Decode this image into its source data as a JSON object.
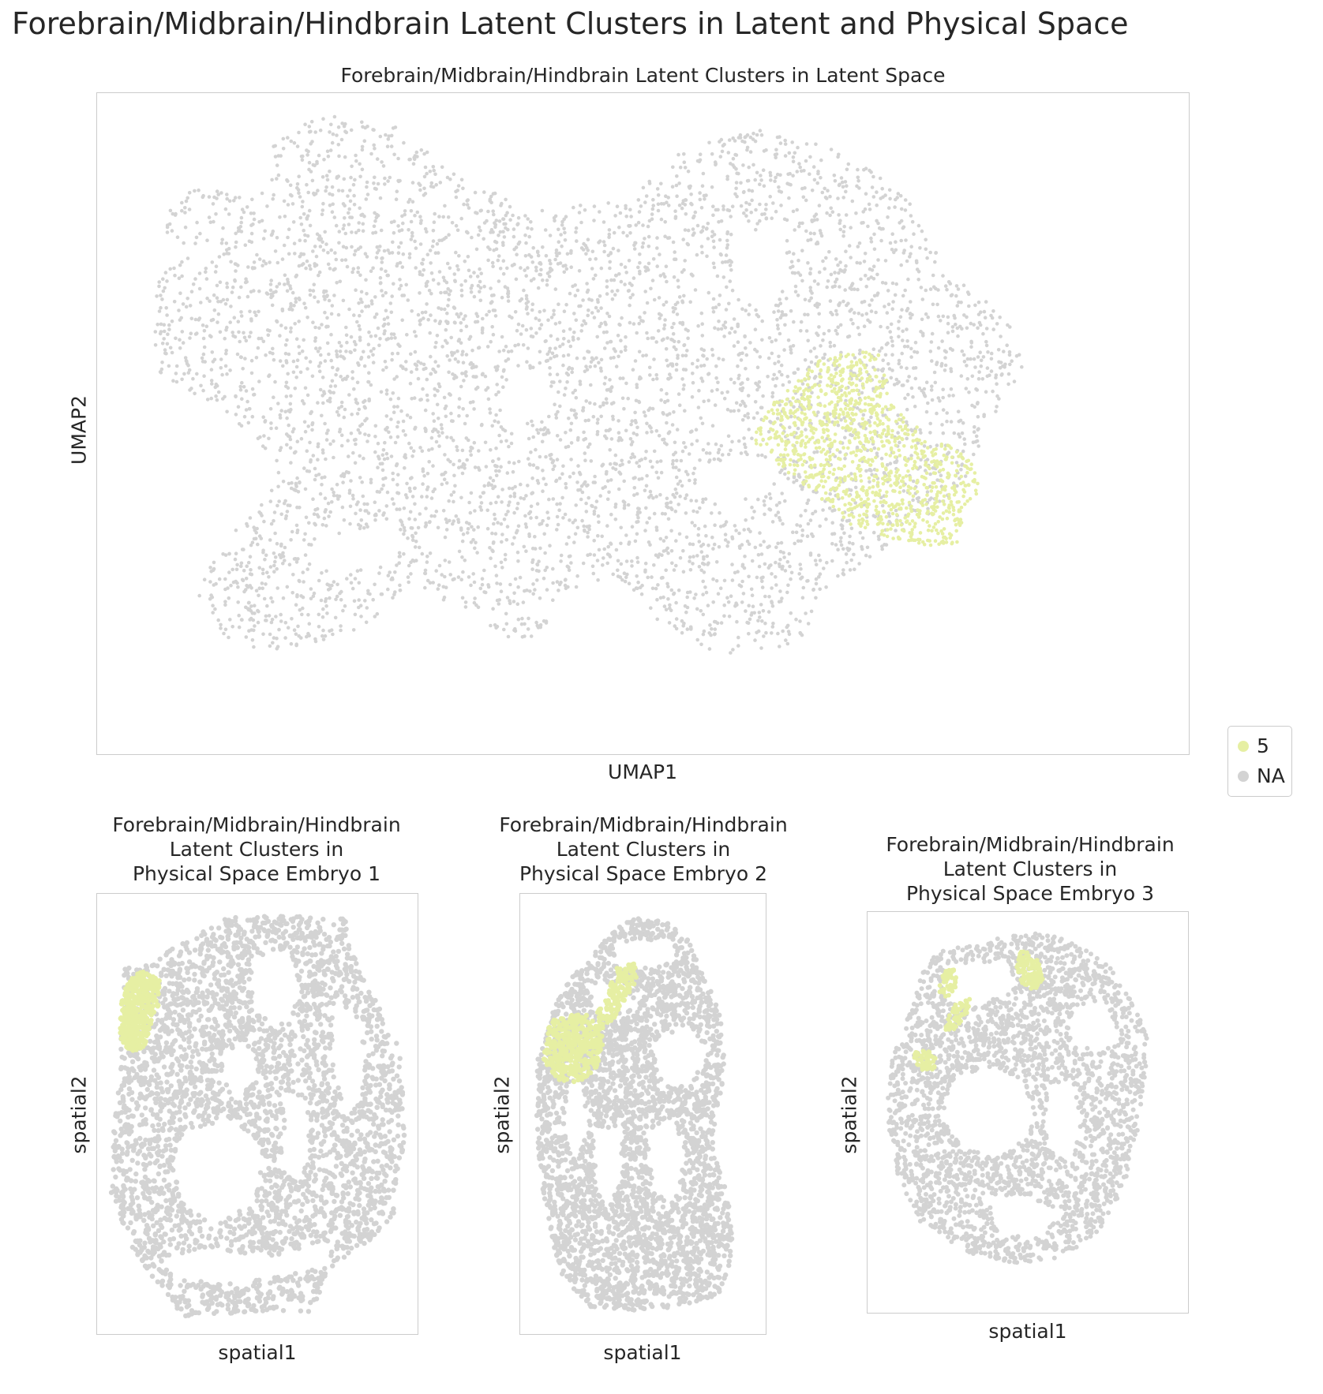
{
  "figure": {
    "suptitle": "Forebrain/Midbrain/Hindbrain Latent Clusters in Latent and Physical Space"
  },
  "colors": {
    "cluster": "#e6efa3",
    "na": "#d3d3d3"
  },
  "legend": {
    "items": [
      {
        "label": "5",
        "color": "#e6efa3"
      },
      {
        "label": "NA",
        "color": "#d3d3d3"
      }
    ]
  },
  "chart_data": [
    {
      "type": "scatter",
      "title": "Forebrain/Midbrain/Hindbrain Latent Clusters in Latent Space",
      "xlabel": "UMAP1",
      "ylabel": "UMAP2",
      "grid": false,
      "ticks": false,
      "series": [
        {
          "name": "NA",
          "color": "#d3d3d3",
          "region": "most of embedding"
        },
        {
          "name": "5",
          "color": "#e6efa3",
          "region": "right-centre lobe"
        }
      ]
    },
    {
      "type": "scatter",
      "title": "Forebrain/Midbrain/Hindbrain\nLatent Clusters in\nPhysical Space Embryo 1",
      "xlabel": "spatial1",
      "ylabel": "spatial2",
      "series": [
        {
          "name": "NA",
          "color": "#d3d3d3"
        },
        {
          "name": "5",
          "color": "#e6efa3",
          "region": "upper-left edge"
        }
      ]
    },
    {
      "type": "scatter",
      "title": "Forebrain/Midbrain/Hindbrain\nLatent Clusters in\nPhysical Space Embryo 2",
      "xlabel": "spatial1",
      "ylabel": "spatial2",
      "series": [
        {
          "name": "NA",
          "color": "#d3d3d3"
        },
        {
          "name": "5",
          "color": "#e6efa3",
          "region": "upper-left blob"
        }
      ]
    },
    {
      "type": "scatter",
      "title": "Forebrain/Midbrain/Hindbrain\nLatent Clusters in\nPhysical Space Embryo 3",
      "xlabel": "spatial1",
      "ylabel": "spatial2",
      "series": [
        {
          "name": "NA",
          "color": "#d3d3d3"
        },
        {
          "name": "5",
          "color": "#e6efa3",
          "region": "upper strip"
        }
      ]
    }
  ]
}
